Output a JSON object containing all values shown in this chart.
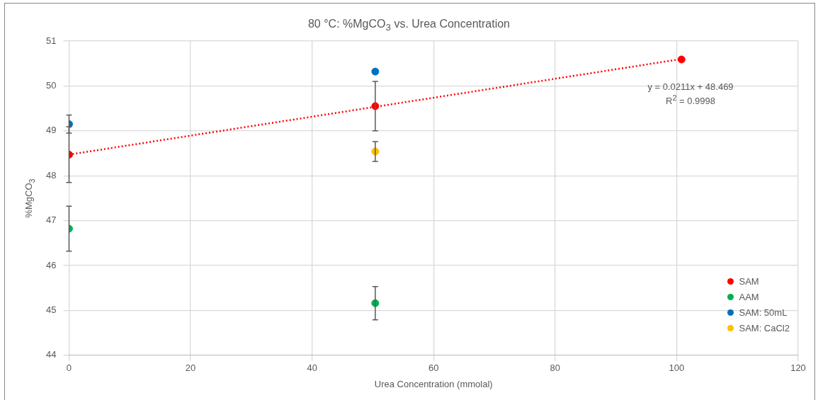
{
  "chart_data": {
    "type": "scatter",
    "title": "80 °C: %MgCO$_{3}$ vs. Urea Concentration",
    "xlabel": "Urea Concentration (mmolal)",
    "ylabel": "%MgCO$_{3}$",
    "xlim": [
      0,
      120
    ],
    "xticks": [
      0,
      20,
      40,
      60,
      80,
      100,
      120
    ],
    "ylim": [
      44,
      51
    ],
    "yticks": [
      44,
      45,
      46,
      47,
      48,
      49,
      50,
      51
    ],
    "grid": true,
    "legend": "bottom right",
    "marker": "circle",
    "series": [
      {
        "name": "SAM",
        "color": "#ff0000",
        "x": [
          0,
          50.4,
          100.8
        ],
        "values": [
          48.47,
          49.55,
          50.59
        ],
        "errors": [
          0.62,
          0.55,
          null
        ]
      },
      {
        "name": "AAM",
        "color": "#00b050",
        "x": [
          0,
          50.4
        ],
        "values": [
          46.82,
          45.16
        ],
        "errors": [
          0.5,
          0.37
        ]
      },
      {
        "name": "SAM: 50mL",
        "color": "#0070c0",
        "x": [
          0,
          50.4
        ],
        "values": [
          49.15,
          50.32
        ],
        "errors": [
          0.2,
          null
        ]
      },
      {
        "name": "SAM: CaCl2",
        "color": "#ffc000",
        "x": [
          50.4
        ],
        "values": [
          48.54
        ],
        "errors": [
          0.22
        ]
      },
      {
        "type": "line",
        "color": "#ff0000",
        "line_style": "dotted",
        "marker": "none",
        "x": [
          0,
          100.8
        ],
        "values": [
          48.47,
          50.6
        ]
      }
    ],
    "annotations": [
      "y = 0.0211x + 48.469",
      "R$^{2}$ = 0.9998"
    ]
  }
}
